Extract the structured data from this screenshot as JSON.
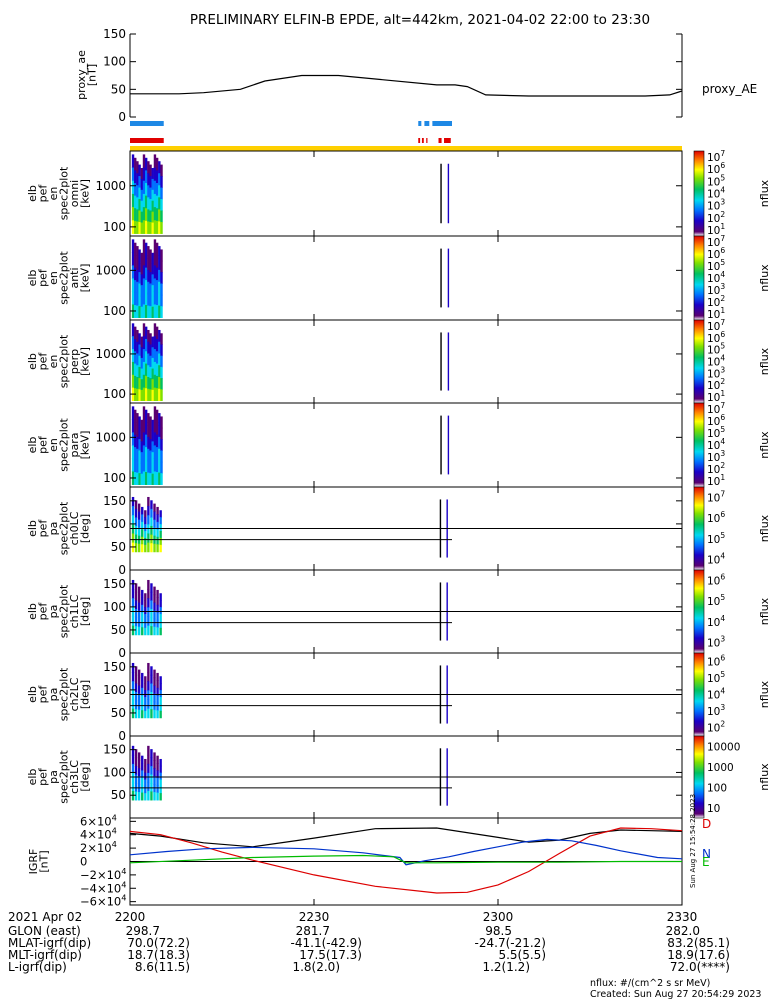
{
  "chart_data": {
    "type": "heatmap",
    "title": "PRELIMINARY ELFIN-B EPDE, alt=442km, 2021-04-02 22:00 to 23:30",
    "time_range": [
      "2021-04-02 22:00",
      "2021-04-02 23:30"
    ],
    "x_ticks": [
      "2200",
      "2230",
      "2300",
      "2330"
    ],
    "x_tick_minutes": [
      0,
      30,
      60,
      90
    ],
    "ae_panel": {
      "ylabel_lines": [
        "proxy_ae",
        "[nT]"
      ],
      "series_label": "proxy_AE",
      "ylim": [
        0,
        150
      ],
      "y_ticks": [
        "150",
        "100",
        "50",
        "0"
      ],
      "y_tick_values": [
        150,
        100,
        50,
        0
      ],
      "minutes": [
        0,
        8,
        12,
        18,
        22,
        28,
        34,
        50,
        53,
        55,
        58,
        65,
        72,
        76,
        84,
        88,
        90
      ],
      "values": [
        42,
        42,
        44,
        50,
        65,
        75,
        75,
        58,
        58,
        55,
        40,
        38,
        38,
        38,
        38,
        40,
        47
      ]
    },
    "status_bars": {
      "blue_segments": [
        [
          0,
          5.5
        ],
        [
          47,
          47.5
        ],
        [
          48,
          48.8
        ],
        [
          49.3,
          52.5
        ]
      ],
      "red_segments": [
        [
          0,
          5.5
        ],
        [
          47,
          47.3
        ],
        [
          47.6,
          47.9
        ],
        [
          48.3,
          48.5
        ],
        [
          50.3,
          50.8
        ],
        [
          51.2,
          52.3
        ]
      ],
      "yellow_segments": [
        [
          0,
          90
        ]
      ]
    },
    "spectrogram_panels": [
      {
        "ylabel_lines": [
          "elb",
          "pef",
          "en",
          "spec2plot",
          "omni",
          "[keV]"
        ],
        "y_ticks": [
          "1000",
          "100"
        ],
        "y_tick_values": [
          1000,
          100
        ],
        "ylim": [
          60,
          7000
        ],
        "colorbar_ticks": [
          "10^7",
          "10^6",
          "10^5",
          "10^4",
          "10^3",
          "10^2",
          "10^1"
        ],
        "colorbar_label": "nflux"
      },
      {
        "ylabel_lines": [
          "elb",
          "pef",
          "en",
          "spec2plot",
          "anti",
          "[keV]"
        ],
        "y_ticks": [
          "1000",
          "100"
        ],
        "y_tick_values": [
          1000,
          100
        ],
        "ylim": [
          60,
          7000
        ],
        "colorbar_ticks": [
          "10^7",
          "10^6",
          "10^5",
          "10^4",
          "10^3",
          "10^2",
          "10^1"
        ],
        "colorbar_label": "nflux"
      },
      {
        "ylabel_lines": [
          "elb",
          "pef",
          "en",
          "spec2plot",
          "perp",
          "[keV]"
        ],
        "y_ticks": [
          "1000",
          "100"
        ],
        "y_tick_values": [
          1000,
          100
        ],
        "ylim": [
          60,
          7000
        ],
        "colorbar_ticks": [
          "10^7",
          "10^6",
          "10^5",
          "10^4",
          "10^3",
          "10^2",
          "10^1"
        ],
        "colorbar_label": "nflux"
      },
      {
        "ylabel_lines": [
          "elb",
          "pef",
          "en",
          "spec2plot",
          "para",
          "[keV]"
        ],
        "y_ticks": [
          "1000",
          "100"
        ],
        "y_tick_values": [
          1000,
          100
        ],
        "ylim": [
          60,
          7000
        ],
        "colorbar_ticks": [
          "10^7",
          "10^6",
          "10^5",
          "10^4",
          "10^3",
          "10^2",
          "10^1"
        ],
        "colorbar_label": "nflux"
      },
      {
        "ylabel_lines": [
          "elb",
          "pef",
          "pa",
          "spec2plot",
          "ch0LC",
          "[deg]"
        ],
        "y_ticks": [
          "150",
          "100",
          "50",
          "0"
        ],
        "y_tick_values": [
          150,
          100,
          50,
          0
        ],
        "ylim": [
          0,
          180
        ],
        "colorbar_ticks": [
          "10^7",
          "10^6",
          "10^5",
          "10^4"
        ],
        "colorbar_label": "nflux"
      },
      {
        "ylabel_lines": [
          "elb",
          "pef",
          "pa",
          "spec2plot",
          "ch1LC",
          "[deg]"
        ],
        "y_ticks": [
          "150",
          "100",
          "50",
          "0"
        ],
        "y_tick_values": [
          150,
          100,
          50,
          0
        ],
        "ylim": [
          0,
          180
        ],
        "colorbar_ticks": [
          "10^6",
          "10^5",
          "10^4",
          "10^3"
        ],
        "colorbar_label": "nflux"
      },
      {
        "ylabel_lines": [
          "elb",
          "pef",
          "pa",
          "spec2plot",
          "ch2LC",
          "[deg]"
        ],
        "y_ticks": [
          "150",
          "100",
          "50",
          "0"
        ],
        "y_tick_values": [
          150,
          100,
          50,
          0
        ],
        "ylim": [
          0,
          180
        ],
        "colorbar_ticks": [
          "10^6",
          "10^5",
          "10^4",
          "10^3",
          "10^2"
        ],
        "colorbar_label": "nflux"
      },
      {
        "ylabel_lines": [
          "elb",
          "pef",
          "pa",
          "spec2plot",
          "ch3LC",
          "[deg]"
        ],
        "y_ticks": [
          "150",
          "100",
          "50"
        ],
        "y_tick_values": [
          150,
          100,
          50
        ],
        "ylim": [
          0,
          180
        ],
        "colorbar_ticks": [
          "10000",
          "1000",
          "100",
          "10"
        ],
        "colorbar_label": "nflux"
      }
    ],
    "igrf_panel": {
      "ylabel_lines": [
        "IGRF",
        "[nT]"
      ],
      "y_ticks": [
        "6×10^4",
        "4×10^4",
        "2×10^4",
        "0",
        "−2×10^4",
        "−4×10^4",
        "−6×10^4"
      ],
      "y_tick_values": [
        60000,
        40000,
        20000,
        0,
        -20000,
        -40000,
        -60000
      ],
      "ylim": [
        -65000,
        65000
      ],
      "component_labels": [
        "D",
        "N",
        "E"
      ],
      "component_colors": [
        "#dd0000",
        "#0033cc",
        "#00bb00"
      ],
      "series": [
        {
          "color": "#000000",
          "minutes": [
            0,
            5,
            12,
            20,
            30,
            40,
            50,
            60,
            65,
            70,
            75,
            80,
            85,
            90
          ],
          "values": [
            42000,
            38000,
            28000,
            22000,
            35000,
            49000,
            50000,
            36000,
            29000,
            32000,
            42000,
            47000,
            46000,
            45000
          ]
        },
        {
          "color": "#dd0000",
          "minutes": [
            0,
            5,
            10,
            15,
            20,
            30,
            40,
            50,
            55,
            60,
            65,
            70,
            75,
            80,
            85,
            90
          ],
          "values": [
            45000,
            40000,
            28000,
            14000,
            2000,
            -20000,
            -37000,
            -47000,
            -46000,
            -35000,
            -15000,
            12000,
            38000,
            50000,
            49000,
            46000
          ]
        },
        {
          "color": "#0033cc",
          "minutes": [
            0,
            6,
            12,
            20,
            30,
            38,
            44,
            45,
            48,
            52,
            56,
            60,
            64,
            68,
            72,
            76,
            80,
            86,
            90
          ],
          "values": [
            10000,
            15000,
            19000,
            21000,
            19000,
            13000,
            6000,
            -5000,
            1000,
            7000,
            15000,
            22000,
            29000,
            33000,
            31000,
            24000,
            16000,
            6000,
            4000
          ]
        },
        {
          "color": "#00bb00",
          "minutes": [
            0,
            10,
            20,
            30,
            38,
            43,
            45,
            50,
            60,
            70,
            80,
            90
          ],
          "values": [
            -2000,
            2000,
            6000,
            8000,
            9000,
            7000,
            -2000,
            -2000,
            -1000,
            -1000,
            0,
            0
          ]
        }
      ]
    },
    "ephemeris": {
      "date_label": "2021 Apr 02",
      "rows": [
        {
          "label": "GLON (east)",
          "values": [
            "298.7",
            "281.7",
            "98.5",
            "282.0"
          ]
        },
        {
          "label": "MLAT-igrf(dip)",
          "values": [
            "70.0(72.2)",
            "-41.1(-42.9)",
            "-24.7(-21.2)",
            "83.2(85.1)"
          ]
        },
        {
          "label": "MLT-igrf(dip)",
          "values": [
            "18.7(18.3)",
            "17.5(17.3)",
            "5.5(5.5)",
            "18.9(17.6)"
          ]
        },
        {
          "label": "L-igrf(dip)",
          "values": [
            "8.6(11.5)",
            "1.8(2.0)",
            "1.2(1.2)",
            "72.0(****)"
          ]
        }
      ]
    },
    "footer": {
      "units": "nflux: #/(cm^2 s sr MeV)",
      "created": "Created: Sun Aug 27 20:54:29 2023",
      "side_stamp": "Sun Aug 27 15:54:28 2023"
    }
  }
}
